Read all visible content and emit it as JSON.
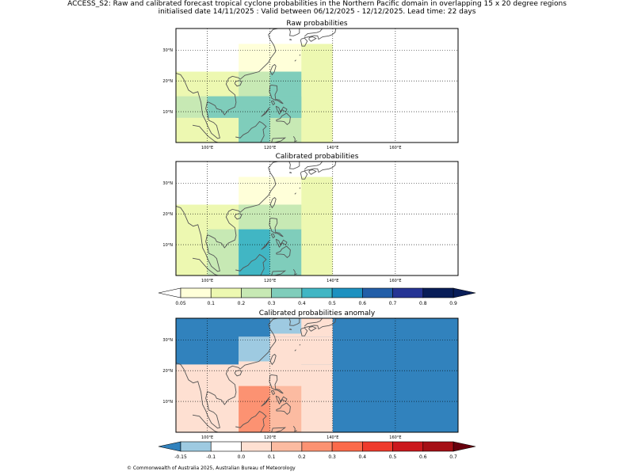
{
  "figure": {
    "title_line1": "ACCESS_S2: Raw and calibrated forecast tropical cyclone probabilities in the Northern Pacific domain in overlapping 15 x 20 degree regions",
    "title_line2": "initialised date 14/11/2025 :  Valid between 06/12/2025 - 12/12/2025. Lead time: 22 days",
    "footer": "© Commonwealth of Australia 2025, Australian Bureau of Meteorology"
  },
  "chart_data": [
    {
      "type": "heatmap",
      "title": "Raw probabilities",
      "x_ticks": [
        "100°E",
        "120°E",
        "140°E",
        "160°E"
      ],
      "y_ticks": [
        "10°N",
        "20°N",
        "30°N"
      ],
      "lon_range": [
        90,
        180
      ],
      "lat_range": [
        0,
        37
      ],
      "cells": [
        {
          "lon": [
            110,
            130
          ],
          "lat": [
            23,
            32
          ],
          "value": 0.07
        },
        {
          "lon": [
            130,
            140
          ],
          "lat": [
            23,
            32
          ],
          "value": 0.15
        },
        {
          "lon": [
            90,
            110
          ],
          "lat": [
            8,
            23
          ],
          "value": 0.15
        },
        {
          "lon": [
            110,
            140
          ],
          "lat": [
            0,
            23
          ],
          "value": 0.15
        },
        {
          "lon": [
            110,
            130
          ],
          "lat": [
            0,
            23
          ],
          "value": 0.25
        },
        {
          "lon": [
            90,
            120
          ],
          "lat": [
            8,
            15
          ],
          "value": 0.25
        },
        {
          "lon": [
            90,
            110
          ],
          "lat": [
            0,
            8
          ],
          "value": 0.15
        },
        {
          "lon": [
            120,
            130
          ],
          "lat": [
            8,
            23
          ],
          "value": 0.35
        },
        {
          "lon": [
            100,
            130
          ],
          "lat": [
            8,
            15
          ],
          "value": 0.35
        },
        {
          "lon": [
            110,
            120
          ],
          "lat": [
            0,
            15
          ],
          "value": 0.35
        }
      ]
    },
    {
      "type": "heatmap",
      "title": "Calibrated probabilities",
      "x_ticks": [
        "100°E",
        "120°E",
        "140°E",
        "160°E"
      ],
      "y_ticks": [
        "10°N",
        "20°N",
        "30°N"
      ],
      "lon_range": [
        90,
        180
      ],
      "lat_range": [
        0,
        37
      ],
      "cells": [
        {
          "lon": [
            110,
            130
          ],
          "lat": [
            23,
            32
          ],
          "value": 0.07
        },
        {
          "lon": [
            130,
            140
          ],
          "lat": [
            23,
            32
          ],
          "value": 0.15
        },
        {
          "lon": [
            90,
            110
          ],
          "lat": [
            0,
            23
          ],
          "value": 0.15
        },
        {
          "lon": [
            110,
            140
          ],
          "lat": [
            0,
            23
          ],
          "value": 0.15
        },
        {
          "lon": [
            110,
            130
          ],
          "lat": [
            15,
            23
          ],
          "value": 0.25
        },
        {
          "lon": [
            100,
            110
          ],
          "lat": [
            0,
            15
          ],
          "value": 0.25
        },
        {
          "lon": [
            120,
            130
          ],
          "lat": [
            0,
            15
          ],
          "value": 0.35
        },
        {
          "lon": [
            110,
            120
          ],
          "lat": [
            0,
            15
          ],
          "value": 0.45
        }
      ]
    },
    {
      "type": "heatmap",
      "title": "Calibrated probabilities anomaly",
      "x_ticks": [
        "100°E",
        "120°E",
        "140°E",
        "160°E"
      ],
      "y_ticks": [
        "10°N",
        "20°N",
        "30°N"
      ],
      "lon_range": [
        90,
        180
      ],
      "lat_range": [
        0,
        37
      ],
      "cells": [
        {
          "lon": [
            90,
            180
          ],
          "lat": [
            0,
            37
          ],
          "value": -0.2
        },
        {
          "lon": [
            90,
            140
          ],
          "lat": [
            0,
            22
          ],
          "value": 0.0
        },
        {
          "lon": [
            110,
            140
          ],
          "lat": [
            22,
            31
          ],
          "value": 0.0
        },
        {
          "lon": [
            120,
            140
          ],
          "lat": [
            31,
            37
          ],
          "value": 0.0
        },
        {
          "lon": [
            110,
            120
          ],
          "lat": [
            22,
            31
          ],
          "value": -0.12
        },
        {
          "lon": [
            120,
            130
          ],
          "lat": [
            32,
            37
          ],
          "value": -0.12
        },
        {
          "lon": [
            110,
            130
          ],
          "lat": [
            15,
            23
          ],
          "value": 0.05
        },
        {
          "lon": [
            100,
            110
          ],
          "lat": [
            0,
            15
          ],
          "value": 0.05
        },
        {
          "lon": [
            120,
            130
          ],
          "lat": [
            0,
            15
          ],
          "value": 0.15
        },
        {
          "lon": [
            110,
            120
          ],
          "lat": [
            0,
            15
          ],
          "value": 0.25
        }
      ]
    }
  ],
  "colorbars": [
    {
      "name": "probability",
      "ticks": [
        "0.05",
        "0.1",
        "0.2",
        "0.3",
        "0.4",
        "0.5",
        "0.6",
        "0.7",
        "0.8",
        "0.9"
      ],
      "colors": [
        "#ffffd9",
        "#edf8b1",
        "#c7e9b4",
        "#7fcdbb",
        "#41b6c4",
        "#1d91c0",
        "#225ea8",
        "#253494",
        "#081d58"
      ],
      "under_color": "#ffffff",
      "over_color": "#081d58"
    },
    {
      "name": "anomaly",
      "ticks": [
        "-0.15",
        "-0.1",
        "0.0",
        "0.1",
        "0.2",
        "0.3",
        "0.4",
        "0.5",
        "0.6",
        "0.7"
      ],
      "colors": [
        "#9ecae1",
        "#ffffff",
        "#fee0d2",
        "#fcbba1",
        "#fc9272",
        "#fb6a4a",
        "#ef3b2c",
        "#cb181d",
        "#a50f15"
      ],
      "under_color": "#3182bd",
      "over_color": "#67000d"
    }
  ]
}
